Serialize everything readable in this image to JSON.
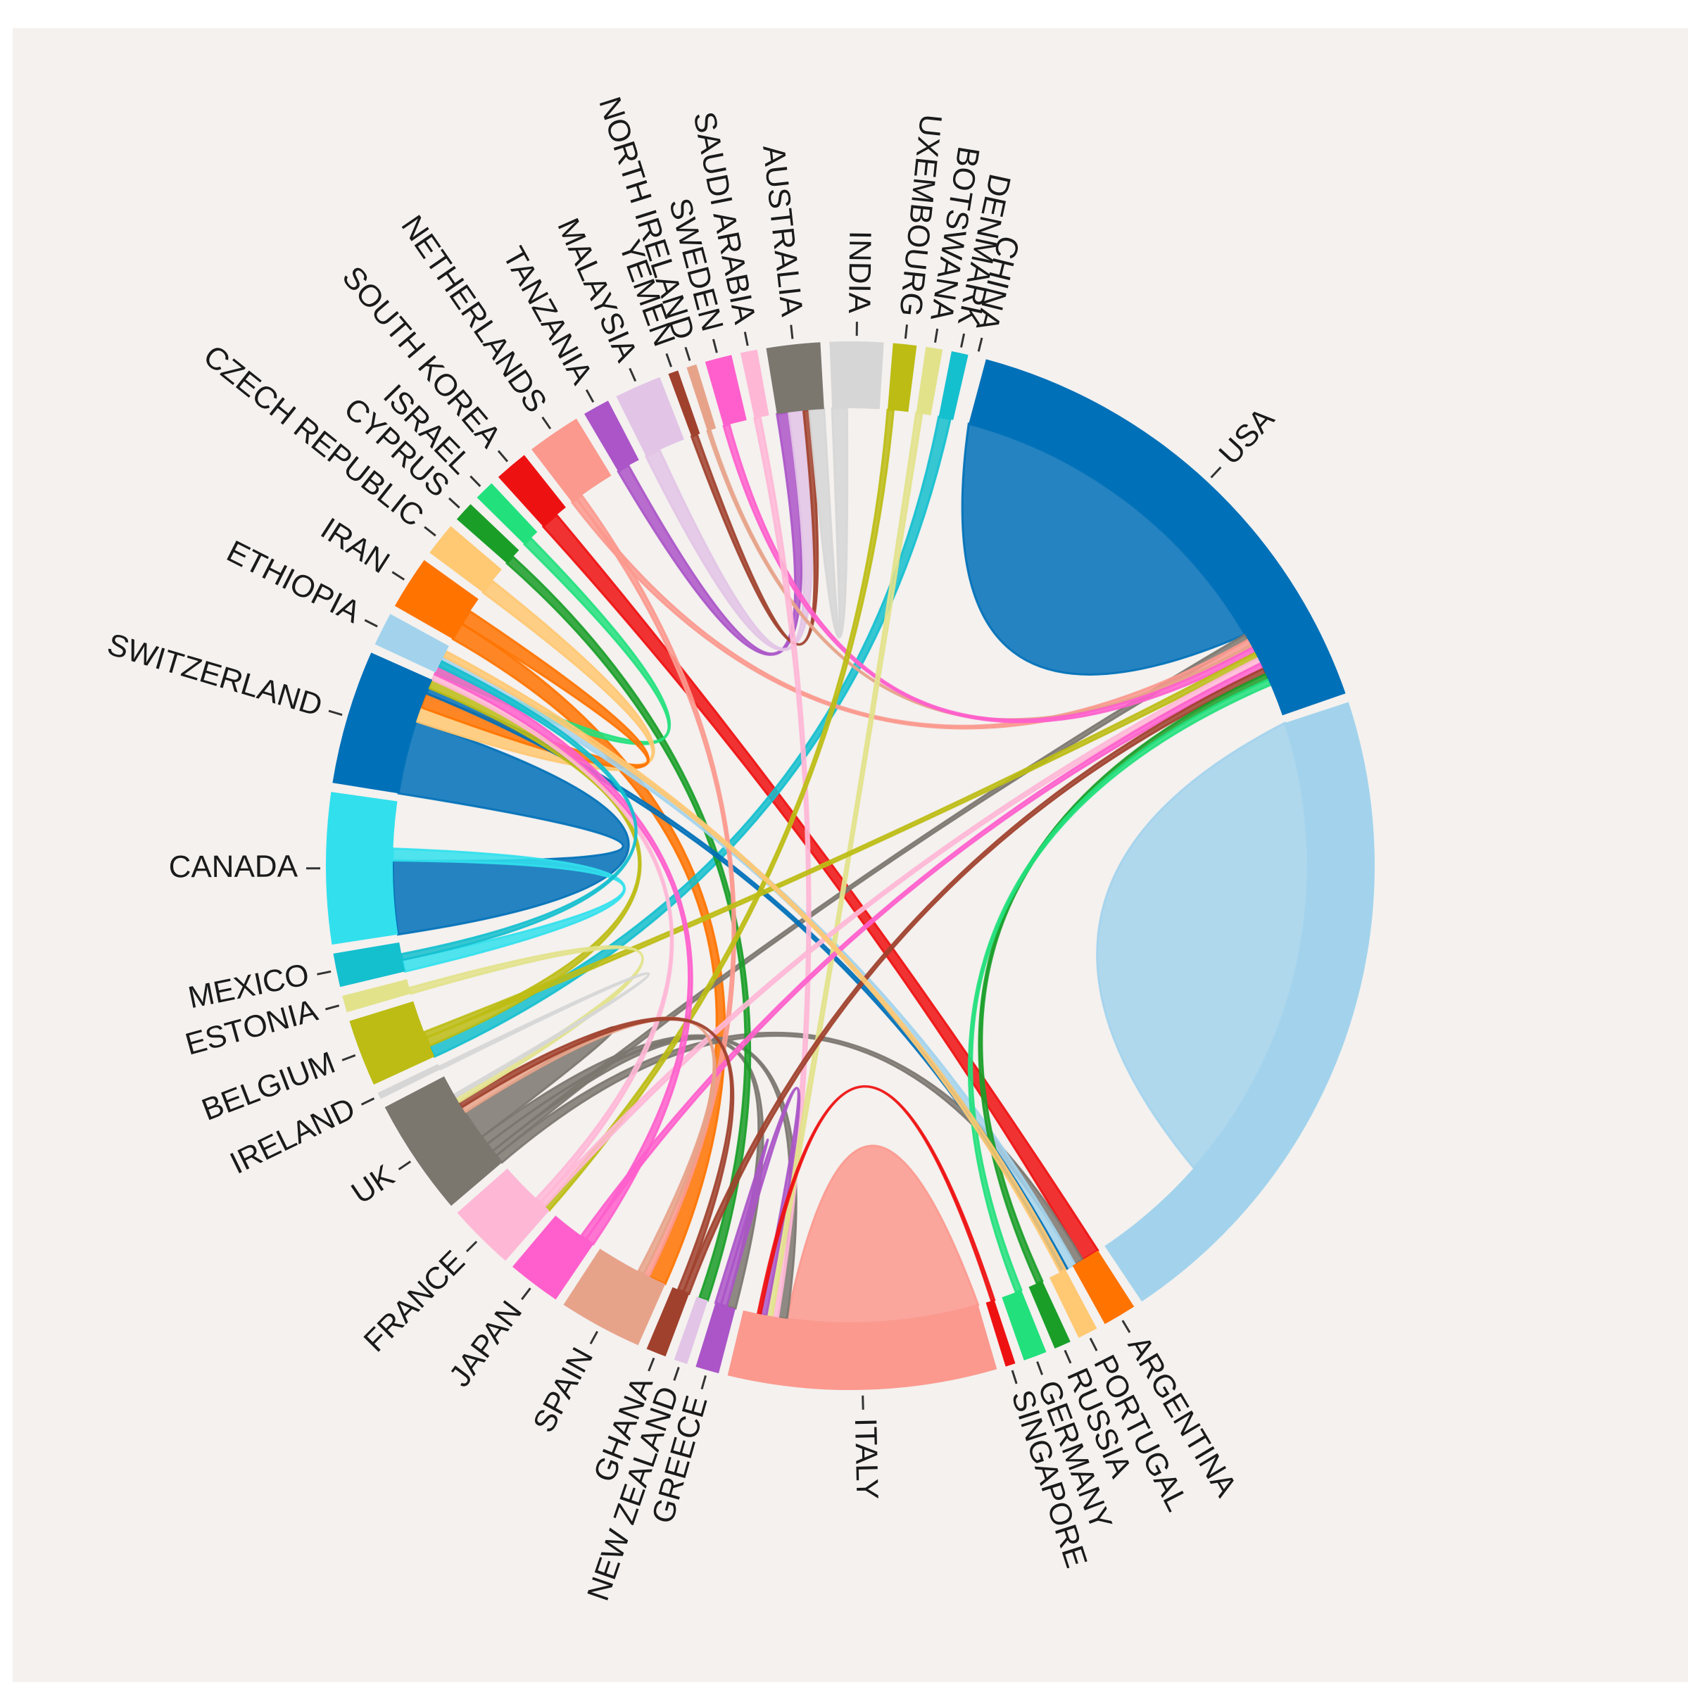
{
  "chart_data": {
    "type": "chord",
    "title": "",
    "countries": [
      {
        "name": "USA",
        "color": "#0070b8",
        "weight": 15.0
      },
      {
        "name": "",
        "color": "#a3d3ec",
        "weight": 20.0
      },
      {
        "name": "ARGENTINA",
        "color": "#ff7300",
        "weight": 1.0
      },
      {
        "name": "PORTUGAL",
        "color": "#ffc872",
        "weight": 0.6
      },
      {
        "name": "RUSSIA",
        "color": "#1a9e28",
        "weight": 0.5
      },
      {
        "name": "GERMANY",
        "color": "#22e07c",
        "weight": 0.7
      },
      {
        "name": "SINGAPORE",
        "color": "#ee1111",
        "weight": 0.3
      },
      {
        "name": "ITALY",
        "color": "#fb998e",
        "weight": 8.0
      },
      {
        "name": "GREECE",
        "color": "#ab55c8",
        "weight": 0.7
      },
      {
        "name": "NEW ZEALAND",
        "color": "#e2c4e6",
        "weight": 0.4
      },
      {
        "name": "GHANA",
        "color": "#a0412d",
        "weight": 0.6
      },
      {
        "name": "SPAIN",
        "color": "#e7a38a",
        "weight": 2.5
      },
      {
        "name": "JAPAN",
        "color": "#ff5fcc",
        "weight": 1.6
      },
      {
        "name": "FRANCE",
        "color": "#ffb7d6",
        "weight": 2.0
      },
      {
        "name": "UK",
        "color": "#7b776f",
        "weight": 3.5
      },
      {
        "name": "IRELAND",
        "color": "#d6d6d6",
        "weight": 0.2
      },
      {
        "name": "BELGIUM",
        "color": "#bcbc14",
        "weight": 2.0
      },
      {
        "name": "ESTONIA",
        "color": "#e2e28b",
        "weight": 0.5
      },
      {
        "name": "MEXICO",
        "color": "#14bfce",
        "weight": 1.0
      },
      {
        "name": "CANADA",
        "color": "#31e0ec",
        "weight": 4.5
      },
      {
        "name": "SWITZERLAND",
        "color": "#0070b8",
        "weight": 4.0
      },
      {
        "name": "ETHIOPIA",
        "color": "#a3d3ec",
        "weight": 1.0
      },
      {
        "name": "IRAN",
        "color": "#ff7300",
        "weight": 1.6
      },
      {
        "name": "CZECH REPUBLIC",
        "color": "#ffc872",
        "weight": 1.0
      },
      {
        "name": "CYPRUS",
        "color": "#1a9e28",
        "weight": 0.6
      },
      {
        "name": "ISRAEL",
        "color": "#22e07c",
        "weight": 0.6
      },
      {
        "name": "SOUTH KOREA",
        "color": "#ee1111",
        "weight": 1.0
      },
      {
        "name": "NETHERLANDS",
        "color": "#fb998e",
        "weight": 1.6
      },
      {
        "name": "TANZANIA",
        "color": "#ab55c8",
        "weight": 0.8
      },
      {
        "name": "MALAYSIA",
        "color": "#e2c4e6",
        "weight": 1.4
      },
      {
        "name": "YEMEN",
        "color": "#a0412d",
        "weight": 0.3
      },
      {
        "name": "NORTH IRELAND",
        "color": "#e7a38a",
        "weight": 0.3
      },
      {
        "name": "SWEDEN",
        "color": "#ff5fcc",
        "weight": 0.8
      },
      {
        "name": "SAUDI ARABIA",
        "color": "#ffb7d6",
        "weight": 0.5
      },
      {
        "name": "AUSTRALIA",
        "color": "#7b776f",
        "weight": 1.6
      },
      {
        "name": "INDIA",
        "color": "#d6d6d6",
        "weight": 1.6
      },
      {
        "name": "UXEMBOURG",
        "color": "#bcbc14",
        "weight": 0.7
      },
      {
        "name": "BOTSWANA",
        "color": "#e2e28b",
        "weight": 0.5
      },
      {
        "name": "DENMARK",
        "color": "#14bfce",
        "weight": 0.5
      },
      {
        "name": "CHINA",
        "color": "#ffffff",
        "weight": 0.0
      }
    ],
    "links": [
      {
        "source": "USA",
        "target": "USA",
        "value": 12.0
      },
      {
        "source": "",
        "target": "",
        "value": 16.0
      },
      {
        "source": "ITALY",
        "target": "ITALY",
        "value": 6.5
      },
      {
        "source": "SWITZERLAND",
        "target": "CANADA",
        "value": 2.5
      },
      {
        "source": "SOUTH KOREA",
        "target": "ARGENTINA",
        "value": 0.6
      },
      {
        "source": "IRAN",
        "target": "SPAIN",
        "value": 0.6
      },
      {
        "source": "DENMARK",
        "target": "BELGIUM",
        "value": 0.4
      },
      {
        "source": "UK",
        "target": "ARGENTINA",
        "value": 0.3
      },
      {
        "source": "UK",
        "target": "USA",
        "value": 0.2
      },
      {
        "source": "UK",
        "target": "GREECE",
        "value": 0.3
      },
      {
        "source": "UK",
        "target": "ITALY",
        "value": 0.3
      },
      {
        "source": "UK",
        "target": "UK",
        "value": 1.0
      },
      {
        "source": "CYPRUS",
        "target": "NEW ZEALAND",
        "value": 0.3
      },
      {
        "source": "ISRAEL",
        "target": "ETHIOPIA",
        "value": 0.3
      },
      {
        "source": "CZECH REPUBLIC",
        "target": "SWITZERLAND",
        "value": 0.5
      },
      {
        "source": "IRAN",
        "target": "SWITZERLAND",
        "value": 0.5
      },
      {
        "source": "ETHIOPIA",
        "target": "ARGENTINA",
        "value": 0.3
      },
      {
        "source": "SWITZERLAND",
        "target": "ARGENTINA",
        "value": 0.2
      },
      {
        "source": "NETHERLANDS",
        "target": "USA",
        "value": 0.2
      },
      {
        "source": "NETHERLANDS",
        "target": "SPAIN",
        "value": 0.2
      },
      {
        "source": "TANZANIA",
        "target": "AUSTRALIA",
        "value": 0.4
      },
      {
        "source": "MALAYSIA",
        "target": "AUSTRALIA",
        "value": 0.5
      },
      {
        "source": "YEMEN",
        "target": "AUSTRALIA",
        "value": 0.2
      },
      {
        "source": "NORTH IRELAND",
        "target": "USA",
        "value": 0.1
      },
      {
        "source": "SWEDEN",
        "target": "USA",
        "value": 0.2
      },
      {
        "source": "SAUDI ARABIA",
        "target": "ITALY",
        "value": 0.2
      },
      {
        "source": "INDIA",
        "target": "AUSTRALIA",
        "value": 0.5
      },
      {
        "source": "UXEMBOURG",
        "target": "FRANCE",
        "value": 0.2
      },
      {
        "source": "BOTSWANA",
        "target": "ITALY",
        "value": 0.2
      },
      {
        "source": "CANADA",
        "target": "MEXICO",
        "value": 0.4
      },
      {
        "source": "BELGIUM",
        "target": "SWITZERLAND",
        "value": 0.3
      },
      {
        "source": "BELGIUM",
        "target": "USA",
        "value": 0.2
      },
      {
        "source": "FRANCE",
        "target": "USA",
        "value": 0.2
      },
      {
        "source": "FRANCE",
        "target": "SWITZERLAND",
        "value": 0.2
      },
      {
        "source": "JAPAN",
        "target": "SWITZERLAND",
        "value": 0.3
      },
      {
        "source": "JAPAN",
        "target": "USA",
        "value": 0.2
      },
      {
        "source": "SPAIN",
        "target": "UK",
        "value": 0.2
      },
      {
        "source": "GHANA",
        "target": "USA",
        "value": 0.2
      },
      {
        "source": "GHANA",
        "target": "UK",
        "value": 0.2
      },
      {
        "source": "GREECE",
        "target": "ITALY",
        "value": 0.2
      },
      {
        "source": "GREECE",
        "target": "GREECE",
        "value": 0.2
      },
      {
        "source": "RUSSIA",
        "target": "USA",
        "value": 0.2
      },
      {
        "source": "GERMANY",
        "target": "USA",
        "value": 0.2
      },
      {
        "source": "SINGAPORE",
        "target": "ITALY",
        "value": 0.1
      },
      {
        "source": "PORTUGAL",
        "target": "ETHIOPIA",
        "value": 0.2
      },
      {
        "source": "ESTONIA",
        "target": "UK",
        "value": 0.2
      },
      {
        "source": "IRELAND",
        "target": "UK",
        "value": 0.1
      },
      {
        "source": "MEXICO",
        "target": "SWITZERLAND",
        "value": 0.2
      }
    ]
  }
}
